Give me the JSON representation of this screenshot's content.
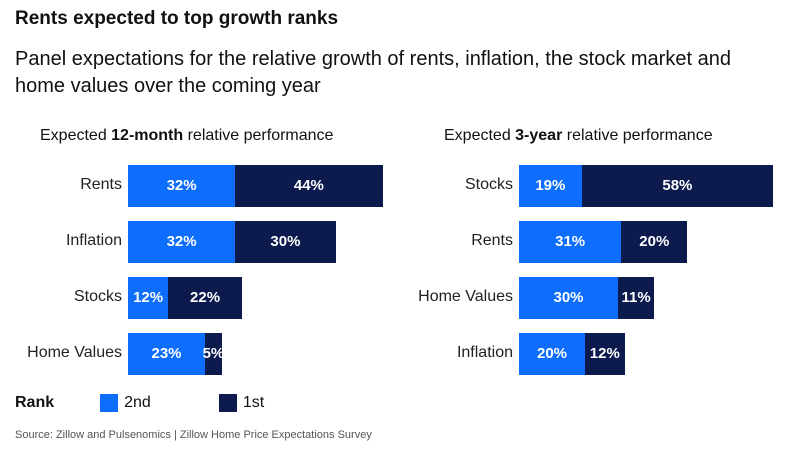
{
  "title": "Rents expected to top growth ranks",
  "subtitle": "Panel expectations for the relative growth of rents, inflation, the stock market and home values over the coming year",
  "colors": {
    "second": "#0d6efd",
    "first": "#0c1a4e"
  },
  "legend": {
    "title": "Rank",
    "second": "2nd",
    "first": "1st"
  },
  "source": "Source: Zillow and Pulsenomics | Zillow Home Price Expectations Survey",
  "chart_data": [
    {
      "type": "bar",
      "orientation": "horizontal",
      "stacked": true,
      "title_prefix": "Expected ",
      "title_bold": "12-month",
      "title_suffix": " relative performance",
      "categories": [
        "Rents",
        "Inflation",
        "Stocks",
        "Home Values"
      ],
      "series": [
        {
          "name": "2nd",
          "values": [
            32,
            32,
            12,
            23
          ],
          "labels": [
            "32%",
            "32%",
            "12%",
            "23%"
          ]
        },
        {
          "name": "1st",
          "values": [
            44,
            30,
            22,
            5
          ],
          "labels": [
            "44%",
            "30%",
            "22%",
            "5%"
          ]
        }
      ]
    },
    {
      "type": "bar",
      "orientation": "horizontal",
      "stacked": true,
      "title_prefix": "Expected ",
      "title_bold": "3-year",
      "title_suffix": " relative performance",
      "categories": [
        "Stocks",
        "Rents",
        "Home Values",
        "Inflation"
      ],
      "series": [
        {
          "name": "2nd",
          "values": [
            19,
            31,
            30,
            20
          ],
          "labels": [
            "19%",
            "31%",
            "30%",
            "20%"
          ]
        },
        {
          "name": "1st",
          "values": [
            58,
            20,
            11,
            12
          ],
          "labels": [
            "58%",
            "20%",
            "11%",
            "12%"
          ]
        }
      ]
    }
  ]
}
